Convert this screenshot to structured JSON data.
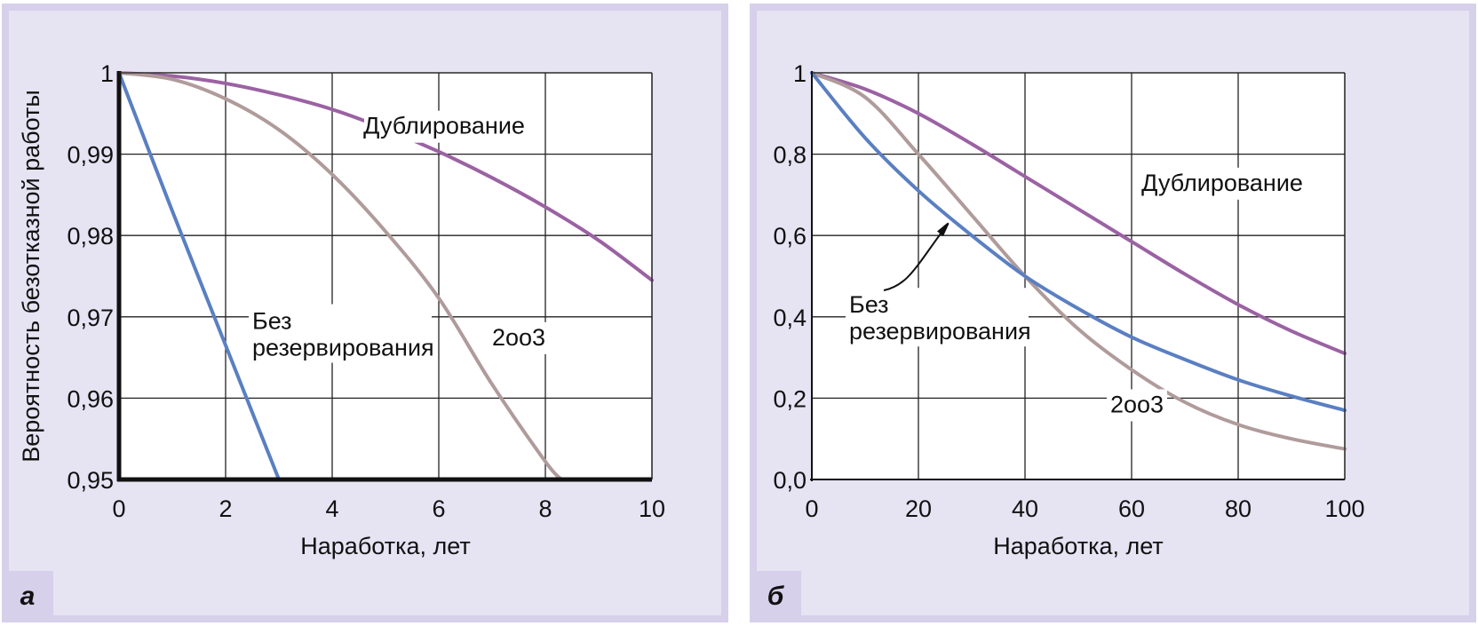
{
  "chart_data": [
    {
      "panel": "а",
      "type": "line",
      "xlabel": "Наработка, лет",
      "ylabel": "Вероятность безотказной работы",
      "xlim": [
        0,
        10
      ],
      "ylim": [
        0.95,
        1
      ],
      "xticks": [
        0,
        2,
        4,
        6,
        8,
        10
      ],
      "yticks": [
        0.95,
        0.96,
        0.97,
        0.98,
        0.99,
        1
      ],
      "ytick_labels": [
        "0,95",
        "0,96",
        "0,97",
        "0,98",
        "0,99",
        "1"
      ],
      "grid": true,
      "series": [
        {
          "name": "Дублирование",
          "color": "#9b62a3",
          "x": [
            0,
            1,
            2,
            3,
            4,
            5,
            6,
            7,
            8,
            9,
            10
          ],
          "values": [
            1,
            0.9996,
            0.9987,
            0.9973,
            0.9955,
            0.9931,
            0.9903,
            0.9871,
            0.9835,
            0.9794,
            0.9745
          ]
        },
        {
          "name": "2oo3",
          "color": "#b09b9b",
          "x": [
            0,
            1,
            2,
            3,
            4,
            5,
            6,
            7,
            8,
            8.3
          ],
          "values": [
            1,
            0.9992,
            0.9968,
            0.993,
            0.9875,
            0.9805,
            0.9723,
            0.9617,
            0.9522,
            0.95
          ]
        },
        {
          "name": "Без резервирования",
          "color": "#5a7fc2",
          "x": [
            0,
            1,
            2,
            3
          ],
          "values": [
            1,
            0.983,
            0.9665,
            0.95
          ]
        }
      ],
      "annotations": [
        {
          "text": "Дублирование",
          "x": 6.1,
          "y": 0.9925
        },
        {
          "text": "2oo3",
          "x": 7.5,
          "y": 0.9665
        },
        {
          "text_lines": [
            "Без",
            "резервирования"
          ],
          "x": 2.5,
          "y": 0.9685
        }
      ]
    },
    {
      "panel": "б",
      "type": "line",
      "xlabel": "Наработка, лет",
      "ylabel": "Вероятность безотказной работы",
      "xlim": [
        0,
        100
      ],
      "ylim": [
        0,
        1
      ],
      "xticks": [
        0,
        20,
        40,
        60,
        80,
        100
      ],
      "yticks": [
        0,
        0.2,
        0.4,
        0.6,
        0.8,
        1
      ],
      "ytick_labels": [
        "0,0",
        "0,2",
        "0,4",
        "0,6",
        "0,8",
        "1"
      ],
      "grid": true,
      "series": [
        {
          "name": "Дублирование",
          "color": "#9b62a3",
          "x": [
            0,
            10,
            20,
            30,
            40,
            50,
            60,
            70,
            80,
            90,
            100
          ],
          "values": [
            1,
            0.96,
            0.9,
            0.825,
            0.745,
            0.665,
            0.585,
            0.505,
            0.43,
            0.365,
            0.31
          ]
        },
        {
          "name": "2oo3",
          "color": "#b09b9b",
          "x": [
            0,
            10,
            20,
            30,
            40,
            50,
            60,
            70,
            80,
            90,
            100
          ],
          "values": [
            1,
            0.94,
            0.8,
            0.65,
            0.5,
            0.37,
            0.27,
            0.19,
            0.135,
            0.1,
            0.075
          ]
        },
        {
          "name": "Без резервирования",
          "color": "#5a7fc2",
          "x": [
            0,
            10,
            20,
            30,
            40,
            50,
            60,
            70,
            80,
            90,
            100
          ],
          "values": [
            1,
            0.84,
            0.71,
            0.6,
            0.5,
            0.42,
            0.35,
            0.295,
            0.245,
            0.205,
            0.17
          ]
        }
      ],
      "annotations": [
        {
          "text": "Дублирование",
          "x": 77,
          "y": 0.71
        },
        {
          "text": "2oo3",
          "x": 61,
          "y": 0.165
        },
        {
          "text_lines": [
            "Без",
            "резервирования"
          ],
          "x": 7,
          "y": 0.41
        }
      ]
    }
  ]
}
